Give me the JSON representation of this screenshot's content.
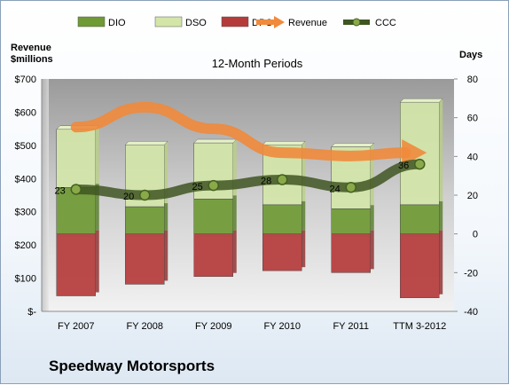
{
  "chart_data": {
    "type": "bar",
    "title": "12-Month Periods",
    "categories": [
      "FY 2007",
      "FY 2008",
      "FY 2009",
      "FY 2010",
      "FY 2011",
      "TTM 3-2012"
    ],
    "left_axis": {
      "label_line1": "Revenue",
      "label_line2": "$millions",
      "ylim": [
        0,
        700
      ],
      "ticks": [
        "$-",
        "$100",
        "$200",
        "$300",
        "$400",
        "$500",
        "$600",
        "$700"
      ]
    },
    "right_axis": {
      "label": "Days",
      "ylim": [
        -40,
        80
      ],
      "ticks": [
        "-40",
        "-20",
        "0",
        "20",
        "40",
        "60",
        "80"
      ]
    },
    "series": [
      {
        "name": "DIO",
        "kind": "stacked-bar",
        "axis": "right",
        "color": "#6f9a35",
        "values": [
          0,
          0,
          0,
          0,
          0,
          0
        ],
        "segments_days": [
          [
            0,
            24
          ],
          [
            0,
            14
          ],
          [
            0,
            18
          ],
          [
            0,
            15
          ],
          [
            0,
            13
          ],
          [
            0,
            15
          ]
        ]
      },
      {
        "name": "DSO",
        "kind": "stacked-bar",
        "axis": "right",
        "color": "#d3e6a8",
        "values": [
          0,
          0,
          0,
          0,
          0,
          0
        ],
        "segments_days": [
          [
            24,
            54
          ],
          [
            14,
            46
          ],
          [
            18,
            47
          ],
          [
            15,
            46
          ],
          [
            13,
            45
          ],
          [
            15,
            68
          ]
        ]
      },
      {
        "name": "DPO",
        "kind": "stacked-bar",
        "axis": "right",
        "color": "#b53b3b",
        "values": [
          0,
          0,
          0,
          0,
          0,
          0
        ],
        "segments_days": [
          [
            -32,
            0
          ],
          [
            -26,
            0
          ],
          [
            -22,
            0
          ],
          [
            -19,
            0
          ],
          [
            -20,
            0
          ],
          [
            -33,
            0
          ]
        ]
      },
      {
        "name": "Revenue",
        "kind": "arrow-line",
        "axis": "left",
        "color": "#f08a3c",
        "values": [
          555,
          615,
          550,
          478,
          468,
          478
        ]
      },
      {
        "name": "CCC",
        "kind": "line",
        "axis": "right",
        "color": "#55702a",
        "values": [
          23,
          20,
          25,
          28,
          24,
          36
        ]
      }
    ],
    "ccc_labels": [
      "23",
      "20",
      "25",
      "28",
      "24",
      "36"
    ],
    "legend": {
      "position": "top",
      "items": [
        "DIO",
        "DSO",
        "DPO",
        "Revenue",
        "CCC"
      ]
    },
    "grid": false
  },
  "footer": {
    "company": "Speedway Motorsports"
  }
}
